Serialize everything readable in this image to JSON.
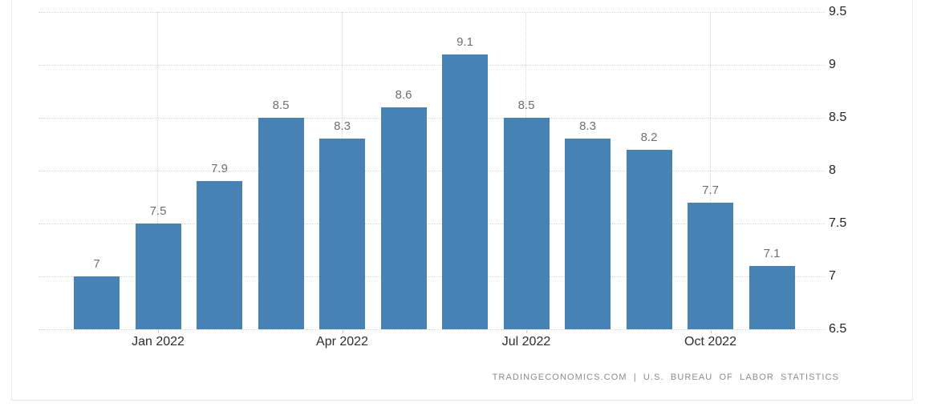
{
  "page": {
    "background_color": "#ffffff"
  },
  "widget": {
    "border_color": "#e7e7e7"
  },
  "chart_data": {
    "type": "bar",
    "title": "",
    "values": [
      7,
      7.5,
      7.9,
      8.5,
      8.3,
      8.6,
      9.1,
      8.5,
      8.3,
      8.2,
      7.7,
      7.1
    ],
    "value_labels": [
      "7",
      "7.5",
      "7.9",
      "8.5",
      "8.3",
      "8.6",
      "9.1",
      "8.5",
      "8.3",
      "8.2",
      "7.7",
      "7.1"
    ],
    "x_ticks": [
      {
        "index": 1,
        "label": "Jan 2022"
      },
      {
        "index": 4,
        "label": "Apr 2022"
      },
      {
        "index": 7,
        "label": "Jul 2022"
      },
      {
        "index": 10,
        "label": "Oct 2022"
      }
    ],
    "y_ticks": [
      {
        "value": 9.5,
        "label": "9.5"
      },
      {
        "value": 9,
        "label": "9"
      },
      {
        "value": 8.5,
        "label": "8.5"
      },
      {
        "value": 8,
        "label": "8"
      },
      {
        "value": 7.5,
        "label": "7.5"
      },
      {
        "value": 7,
        "label": "7"
      },
      {
        "value": 6.5,
        "label": "6.5"
      }
    ],
    "ylim": [
      6.5,
      9.5
    ],
    "grid": true,
    "legend_position": "none",
    "y_axis_side": "right",
    "bar_color": "#4682b4",
    "grid_color": "#d6d6d6",
    "value_label_color": "#6f6f6f",
    "axis_label_color": "#2d2d2d"
  },
  "footer": {
    "source_text": "TRADINGECONOMICS.COM | U.S. BUREAU OF LABOR STATISTICS"
  }
}
